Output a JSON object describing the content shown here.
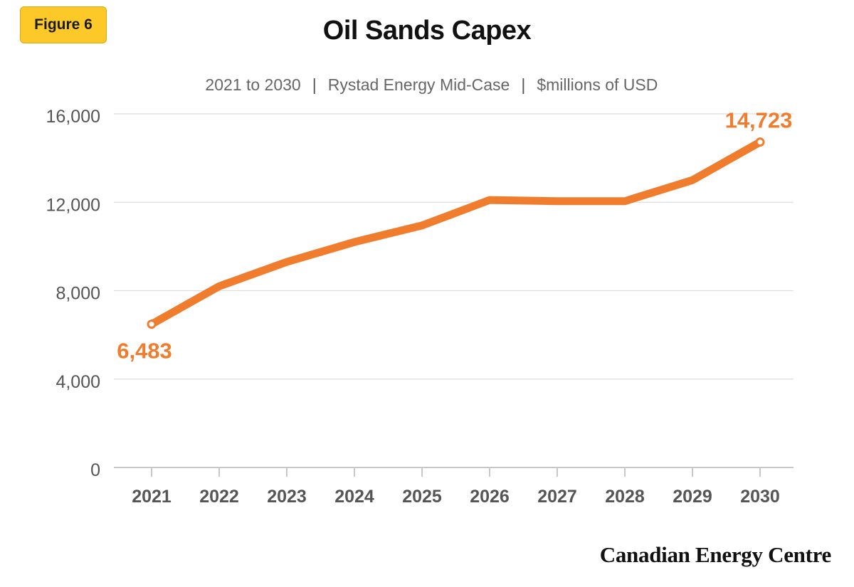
{
  "badge": "Figure 6",
  "chart_data": {
    "type": "line",
    "title": "Oil Sands Capex",
    "subtitle_parts": [
      "2021 to 2030",
      "Rystad Energy Mid-Case",
      "$millions of USD"
    ],
    "xlabel": "",
    "ylabel": "",
    "categories": [
      "2021",
      "2022",
      "2023",
      "2024",
      "2025",
      "2026",
      "2027",
      "2028",
      "2029",
      "2030"
    ],
    "series": [
      {
        "values": [
          6483,
          8200,
          9300,
          10200,
          10950,
          12100,
          12050,
          12050,
          13000,
          14723
        ],
        "color": "#f07d2e"
      }
    ],
    "ylim": [
      0,
      16000
    ],
    "yticks": [
      0,
      4000,
      8000,
      12000,
      16000
    ],
    "ytick_labels": [
      "0",
      "4,000",
      "8,000",
      "12,000",
      "16,000"
    ],
    "data_labels": [
      {
        "index": 0,
        "text": "6,483"
      },
      {
        "index": 9,
        "text": "14,723"
      }
    ],
    "grid": true,
    "line_color": "#f07d2e"
  },
  "footer": {
    "brand": "Canadian Energy Centre"
  }
}
